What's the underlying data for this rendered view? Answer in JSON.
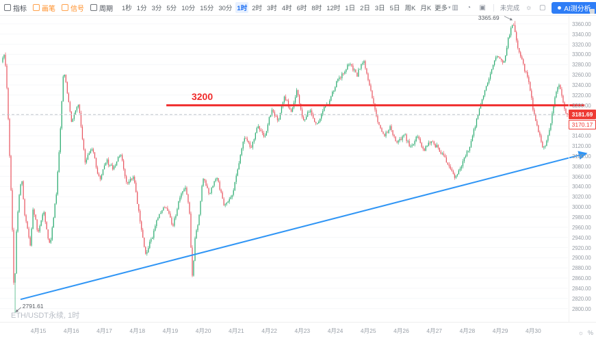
{
  "toolbar": {
    "left_items": [
      {
        "label": "指标",
        "name": "indicators",
        "accent": false
      },
      {
        "label": "画笔",
        "name": "drawing-tools",
        "accent": true
      },
      {
        "label": "信号",
        "name": "signals",
        "accent": true
      },
      {
        "label": "周期",
        "name": "period",
        "accent": false
      }
    ],
    "timeframes": [
      "1秒",
      "1分",
      "3分",
      "5分",
      "10分",
      "15分",
      "30分",
      "1时",
      "2时",
      "3时",
      "4时",
      "6时",
      "8时",
      "12时",
      "1日",
      "2日",
      "3日",
      "5日",
      "周K",
      "月K"
    ],
    "active_timeframe": "1时",
    "more_label": "更多",
    "unfinished_label": "未完成",
    "ai_button_label": "AI测分析"
  },
  "chart": {
    "watermark": "ETH/USDT永续, 1时",
    "resistance_label": "3200",
    "high_label": "3365.69",
    "low_label": "2791.61",
    "last_price_label": "3181.69",
    "mark_price_label": "3170.17"
  },
  "price_axis": [
    "3360.00",
    "3340.00",
    "3320.00",
    "3300.00",
    "3280.00",
    "3260.00",
    "3240.00",
    "3220.00",
    "3200.00",
    "3180.00",
    "3160.00",
    "3140.00",
    "3120.00",
    "3100.00",
    "3080.00",
    "3060.00",
    "3040.00",
    "3020.00",
    "3000.00",
    "2980.00",
    "2960.00",
    "2940.00",
    "2920.00",
    "2900.00",
    "2880.00",
    "2860.00",
    "2840.00",
    "2820.00",
    "2800.00"
  ],
  "time_axis": [
    "4月15",
    "4月16",
    "4月17",
    "4月18",
    "4月19",
    "4月20",
    "4月21",
    "4月22",
    "4月23",
    "4月24",
    "4月25",
    "4月26",
    "4月27",
    "4月28",
    "4月29",
    "4月30"
  ],
  "chart_data": {
    "type": "candlestick",
    "symbol": "ETH/USDT永续",
    "interval": "1时",
    "y_domain": [
      2790,
      3372
    ],
    "day_range": [
      -1.1,
      16.05
    ],
    "high_point": {
      "day": 14.41,
      "price": 3365.69
    },
    "low_point": {
      "day": -0.71,
      "price": 2791.61
    },
    "last_price": 3181.69,
    "mark_price": 3170.17,
    "resistance": {
      "price": 3200,
      "day_start": 3.88,
      "day_end": 16.55
    },
    "trendline": {
      "from": [
        -0.54,
        2818
      ],
      "to": [
        16.59,
        3105
      ]
    },
    "colors": {
      "up": "#2bab70",
      "down": "#e8545f",
      "resistance": "#f02b2b",
      "trendline": "#2f95f5",
      "badge_bg": "#ee3a34",
      "dashed": "#bfc4cb",
      "grid": "#f6f7f9"
    },
    "price_path": [
      [
        -1.1,
        3285
      ],
      [
        -1.02,
        3300
      ],
      [
        -0.95,
        3260
      ],
      [
        -0.86,
        3120
      ],
      [
        -0.78,
        2990
      ],
      [
        -0.71,
        2810
      ],
      [
        -0.64,
        2960
      ],
      [
        -0.55,
        3030
      ],
      [
        -0.49,
        3060
      ],
      [
        -0.4,
        2990
      ],
      [
        -0.31,
        2960
      ],
      [
        -0.22,
        2925
      ],
      [
        -0.14,
        3000
      ],
      [
        -0.05,
        2970
      ],
      [
        0.0,
        2945
      ],
      [
        0.1,
        2975
      ],
      [
        0.18,
        2990
      ],
      [
        0.28,
        2950
      ],
      [
        0.37,
        2922
      ],
      [
        0.47,
        2975
      ],
      [
        0.57,
        3030
      ],
      [
        0.68,
        3140
      ],
      [
        0.78,
        3268
      ],
      [
        0.84,
        3250
      ],
      [
        0.92,
        3210
      ],
      [
        1.04,
        3165
      ],
      [
        1.15,
        3190
      ],
      [
        1.24,
        3205
      ],
      [
        1.35,
        3140
      ],
      [
        1.45,
        3085
      ],
      [
        1.57,
        3110
      ],
      [
        1.69,
        3110
      ],
      [
        1.8,
        3070
      ],
      [
        1.89,
        3050
      ],
      [
        2.0,
        3075
      ],
      [
        2.1,
        3090
      ],
      [
        2.2,
        3080
      ],
      [
        2.3,
        3077
      ],
      [
        2.42,
        3095
      ],
      [
        2.51,
        3104
      ],
      [
        2.62,
        3070
      ],
      [
        2.71,
        3043
      ],
      [
        2.82,
        3055
      ],
      [
        2.91,
        3063
      ],
      [
        3.02,
        3010
      ],
      [
        3.12,
        2962
      ],
      [
        3.22,
        2925
      ],
      [
        3.28,
        2909
      ],
      [
        3.38,
        2925
      ],
      [
        3.48,
        2942
      ],
      [
        3.58,
        2965
      ],
      [
        3.69,
        2989
      ],
      [
        3.79,
        2995
      ],
      [
        3.89,
        3003
      ],
      [
        4.0,
        2980
      ],
      [
        4.1,
        2962
      ],
      [
        4.2,
        2990
      ],
      [
        4.3,
        3016
      ],
      [
        4.4,
        3030
      ],
      [
        4.5,
        3036
      ],
      [
        4.6,
        2990
      ],
      [
        4.69,
        2855
      ],
      [
        4.77,
        2940
      ],
      [
        4.85,
        2962
      ],
      [
        4.93,
        3010
      ],
      [
        5.01,
        3057
      ],
      [
        5.11,
        3040
      ],
      [
        5.21,
        3023
      ],
      [
        5.31,
        3045
      ],
      [
        5.42,
        3063
      ],
      [
        5.54,
        3030
      ],
      [
        5.66,
        3003
      ],
      [
        5.77,
        3010
      ],
      [
        5.87,
        3016
      ],
      [
        5.97,
        3045
      ],
      [
        6.07,
        3077
      ],
      [
        6.17,
        3110
      ],
      [
        6.27,
        3138
      ],
      [
        6.37,
        3128
      ],
      [
        6.48,
        3117
      ],
      [
        6.58,
        3140
      ],
      [
        6.68,
        3158
      ],
      [
        6.78,
        3148
      ],
      [
        6.88,
        3138
      ],
      [
        6.98,
        3165
      ],
      [
        7.09,
        3191
      ],
      [
        7.19,
        3180
      ],
      [
        7.29,
        3171
      ],
      [
        7.39,
        3195
      ],
      [
        7.49,
        3218
      ],
      [
        7.6,
        3200
      ],
      [
        7.7,
        3185
      ],
      [
        7.78,
        3210
      ],
      [
        7.86,
        3232
      ],
      [
        7.95,
        3200
      ],
      [
        8.04,
        3171
      ],
      [
        8.15,
        3180
      ],
      [
        8.25,
        3191
      ],
      [
        8.35,
        3174
      ],
      [
        8.45,
        3158
      ],
      [
        8.55,
        3175
      ],
      [
        8.66,
        3191
      ],
      [
        8.76,
        3200
      ],
      [
        8.86,
        3211
      ],
      [
        8.96,
        3230
      ],
      [
        9.06,
        3245
      ],
      [
        9.17,
        3255
      ],
      [
        9.27,
        3265
      ],
      [
        9.37,
        3275
      ],
      [
        9.47,
        3285
      ],
      [
        9.57,
        3270
      ],
      [
        9.67,
        3258
      ],
      [
        9.77,
        3275
      ],
      [
        9.88,
        3292
      ],
      [
        9.98,
        3260
      ],
      [
        10.08,
        3232
      ],
      [
        10.18,
        3200
      ],
      [
        10.28,
        3171
      ],
      [
        10.38,
        3155
      ],
      [
        10.49,
        3138
      ],
      [
        10.59,
        3148
      ],
      [
        10.69,
        3158
      ],
      [
        10.79,
        3140
      ],
      [
        10.9,
        3124
      ],
      [
        11.0,
        3134
      ],
      [
        11.1,
        3144
      ],
      [
        11.2,
        3130
      ],
      [
        11.3,
        3117
      ],
      [
        11.4,
        3128
      ],
      [
        11.51,
        3138
      ],
      [
        11.61,
        3124
      ],
      [
        11.71,
        3111
      ],
      [
        11.81,
        3121
      ],
      [
        11.91,
        3131
      ],
      [
        12.01,
        3124
      ],
      [
        12.12,
        3117
      ],
      [
        12.22,
        3107
      ],
      [
        12.32,
        3097
      ],
      [
        12.42,
        3087
      ],
      [
        12.52,
        3077
      ],
      [
        12.6,
        3062
      ],
      [
        12.69,
        3059
      ],
      [
        12.79,
        3075
      ],
      [
        12.89,
        3090
      ],
      [
        12.99,
        3104
      ],
      [
        13.09,
        3117
      ],
      [
        13.2,
        3145
      ],
      [
        13.3,
        3171
      ],
      [
        13.4,
        3195
      ],
      [
        13.5,
        3218
      ],
      [
        13.6,
        3238
      ],
      [
        13.7,
        3258
      ],
      [
        13.8,
        3280
      ],
      [
        13.91,
        3299
      ],
      [
        14.01,
        3289
      ],
      [
        14.11,
        3279
      ],
      [
        14.19,
        3306
      ],
      [
        14.27,
        3333
      ],
      [
        14.34,
        3350
      ],
      [
        14.41,
        3362
      ],
      [
        14.48,
        3338
      ],
      [
        14.56,
        3313
      ],
      [
        14.64,
        3296
      ],
      [
        14.72,
        3279
      ],
      [
        14.8,
        3262
      ],
      [
        14.88,
        3245
      ],
      [
        14.95,
        3218
      ],
      [
        15.02,
        3191
      ],
      [
        15.1,
        3170
      ],
      [
        15.17,
        3150
      ],
      [
        15.25,
        3133
      ],
      [
        15.33,
        3112
      ],
      [
        15.41,
        3128
      ],
      [
        15.49,
        3144
      ],
      [
        15.57,
        3175
      ],
      [
        15.65,
        3205
      ],
      [
        15.72,
        3225
      ],
      [
        15.8,
        3243
      ],
      [
        15.87,
        3220
      ],
      [
        15.94,
        3198
      ],
      [
        16.0,
        3188
      ],
      [
        16.05,
        3182
      ]
    ]
  }
}
